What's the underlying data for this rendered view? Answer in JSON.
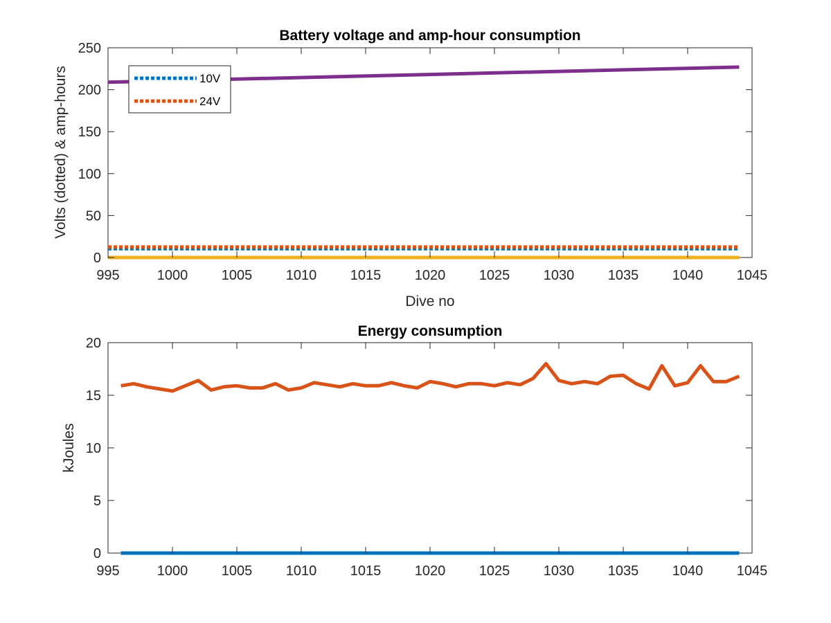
{
  "chart_data": [
    {
      "type": "line",
      "title": "Battery voltage and amp-hour consumption",
      "xlabel": "Dive no",
      "ylabel": "Volts (dotted) & amp-hours",
      "xlim": [
        995,
        1045
      ],
      "ylim": [
        0,
        250
      ],
      "xticks": [
        995,
        1000,
        1005,
        1010,
        1015,
        1020,
        1025,
        1030,
        1035,
        1040,
        1045
      ],
      "yticks": [
        0,
        50,
        100,
        150,
        200,
        250
      ],
      "grid": false,
      "legend_placement": "top-left",
      "series": [
        {
          "name": "10V",
          "style": "dotted",
          "color": "#0072BD",
          "x": [
            995,
            1044
          ],
          "values": [
            10.5,
            10.5
          ]
        },
        {
          "name": "24V",
          "style": "dotted",
          "color": "#D95319",
          "x": [
            995,
            1044
          ],
          "values": [
            12.5,
            12.5
          ]
        },
        {
          "style": "solid",
          "color": "#7E2F8E",
          "x": [
            995,
            1044
          ],
          "values": [
            209,
            227
          ]
        },
        {
          "style": "solid",
          "color": "#EDB120",
          "x": [
            995,
            1044
          ],
          "values": [
            0,
            0
          ]
        }
      ]
    },
    {
      "type": "line",
      "title": "Energy consumption",
      "xlabel": "",
      "ylabel": "kJoules",
      "xlim": [
        995,
        1045
      ],
      "ylim": [
        0,
        20
      ],
      "xticks": [
        995,
        1000,
        1005,
        1010,
        1015,
        1020,
        1025,
        1030,
        1035,
        1040,
        1045
      ],
      "yticks": [
        0,
        5,
        10,
        15,
        20
      ],
      "grid": false,
      "series": [
        {
          "style": "solid",
          "color": "#D95319",
          "x": [
            996,
            997,
            998,
            999,
            1000,
            1001,
            1002,
            1003,
            1004,
            1005,
            1006,
            1007,
            1008,
            1009,
            1010,
            1011,
            1012,
            1013,
            1014,
            1015,
            1016,
            1017,
            1018,
            1019,
            1020,
            1021,
            1022,
            1023,
            1024,
            1025,
            1026,
            1027,
            1028,
            1029,
            1030,
            1031,
            1032,
            1033,
            1034,
            1035,
            1036,
            1037,
            1038,
            1039,
            1040,
            1041,
            1042,
            1043,
            1044
          ],
          "values": [
            15.9,
            16.1,
            15.8,
            15.6,
            15.4,
            15.9,
            16.4,
            15.5,
            15.8,
            15.9,
            15.7,
            15.7,
            16.1,
            15.5,
            15.7,
            16.2,
            16.0,
            15.8,
            16.1,
            15.9,
            15.9,
            16.2,
            15.9,
            15.7,
            16.3,
            16.1,
            15.8,
            16.1,
            16.1,
            15.9,
            16.2,
            16.0,
            16.6,
            18.0,
            16.4,
            16.1,
            16.3,
            16.1,
            16.8,
            16.9,
            16.1,
            15.6,
            17.8,
            15.9,
            16.2,
            17.8,
            16.3,
            16.3,
            16.8
          ]
        },
        {
          "style": "solid",
          "color": "#0072BD",
          "x": [
            996,
            1044
          ],
          "values": [
            0,
            0
          ]
        }
      ]
    }
  ]
}
